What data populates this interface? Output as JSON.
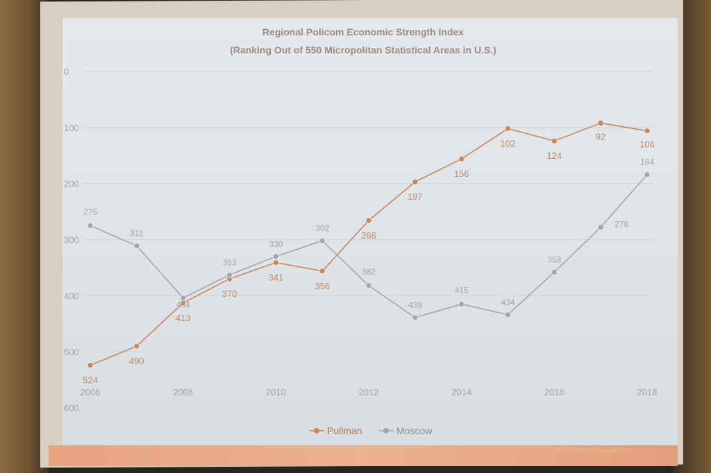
{
  "chart_data": {
    "type": "line",
    "title": "Regional Policom Economic Strength Index",
    "subtitle": "(Ranking Out of 550 Micropolitan Statistical Areas in U.S.)",
    "x": [
      2006,
      2007,
      2008,
      2009,
      2010,
      2011,
      2012,
      2013,
      2014,
      2015,
      2016,
      2017,
      2018
    ],
    "x_tick_labels": [
      "2006",
      "2008",
      "2010",
      "2012",
      "2014",
      "2016",
      "2018"
    ],
    "y_tick_labels": [
      "0",
      "100",
      "200",
      "300",
      "400",
      "500",
      "600"
    ],
    "ylim": [
      0,
      600
    ],
    "y_inverted": true,
    "grid": true,
    "legend_position": "bottom",
    "series": [
      {
        "name": "Pullman",
        "color": "#c9865c",
        "values": [
          524,
          490,
          413,
          370,
          341,
          356,
          266,
          197,
          156,
          102,
          124,
          92,
          106
        ]
      },
      {
        "name": "Moscow",
        "color": "#a3a5b0",
        "values": [
          275,
          311,
          404,
          363,
          330,
          302,
          382,
          439,
          415,
          434,
          358,
          278,
          184
        ]
      }
    ],
    "source_note": "Source: Policom Corporation"
  }
}
